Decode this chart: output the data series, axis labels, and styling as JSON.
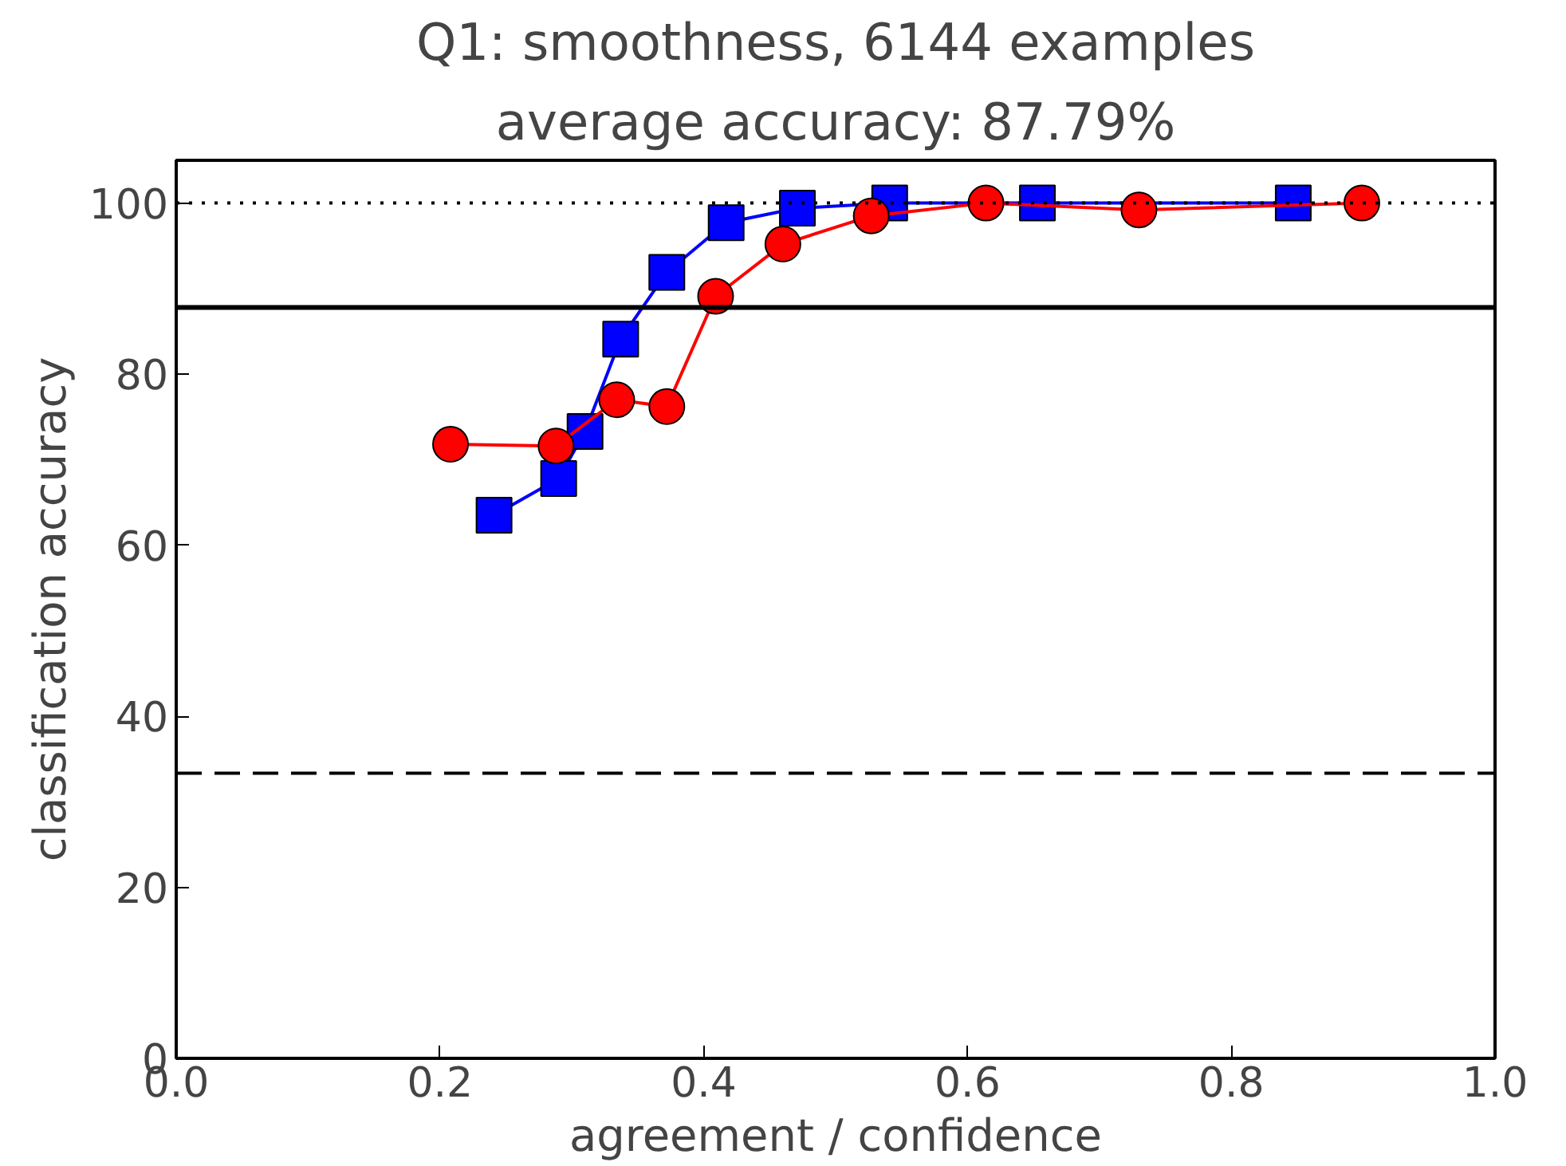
{
  "chart_data": {
    "type": "line",
    "title": "Q1: smoothness, 6144 examples",
    "subtitle": "average accuracy: 87.79%",
    "xlabel": "agreement / confidence",
    "ylabel": "classification accuracy",
    "xlim": [
      0,
      1
    ],
    "ylim": [
      0,
      105
    ],
    "xticks": [
      {
        "value": 0,
        "label": "0.0"
      },
      {
        "value": 0.2,
        "label": "0.2"
      },
      {
        "value": 0.4,
        "label": "0.4"
      },
      {
        "value": 0.6,
        "label": "0.6"
      },
      {
        "value": 0.8,
        "label": "0.8"
      },
      {
        "value": 1,
        "label": "1.0"
      }
    ],
    "yticks": [
      0,
      20,
      40,
      60,
      80,
      100
    ],
    "grid": false,
    "series": [
      {
        "color": "#0000ff",
        "marker": "square",
        "x": [
          0.241,
          0.29,
          0.31,
          0.337,
          0.372,
          0.417,
          0.471,
          0.541,
          0.653,
          0.847
        ],
        "values": [
          63.5,
          67.8,
          73.3,
          84.1,
          91.9,
          97.7,
          99.4,
          100,
          100,
          100
        ]
      },
      {
        "color": "#ff0000",
        "marker": "circle",
        "x": [
          0.208,
          0.288,
          0.334,
          0.372,
          0.409,
          0.46,
          0.527,
          0.614,
          0.73,
          0.899
        ],
        "values": [
          71.8,
          71.6,
          77.0,
          76.2,
          89.1,
          95.2,
          98.5,
          100,
          99.2,
          100
        ]
      }
    ],
    "ref_lines": [
      {
        "axis": "y",
        "value": 100,
        "color": "#000000",
        "line_style": "dotted"
      },
      {
        "axis": "y",
        "value": 87.79,
        "color": "#000000",
        "line_style": "solid"
      },
      {
        "axis": "y",
        "value": 33.33,
        "color": "#000000",
        "line_style": "dashed"
      }
    ]
  }
}
